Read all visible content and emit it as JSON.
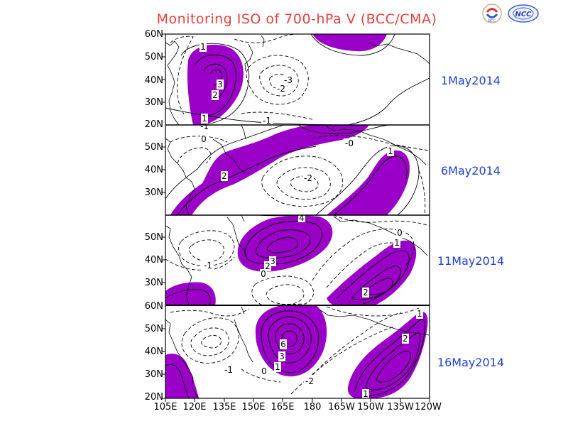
{
  "title": "Monitoring ISO of 700-hPa V (BCC/CMA)",
  "logos": {
    "left": "BCC",
    "right": "NCC"
  },
  "colors": {
    "title": "#e8403a",
    "dates": "#1e3fd6",
    "positive_fill": "#9b00c8",
    "contour": "#000000"
  },
  "panels": [
    {
      "date": "1May2014",
      "lat_labels": [
        "60N",
        "50N",
        "40N",
        "30N",
        "20N"
      ],
      "contour_labels": [
        "1",
        "3",
        "2",
        "1",
        "-3",
        "-2",
        "-1"
      ]
    },
    {
      "date": "6May2014",
      "lat_labels": [
        "50N",
        "40N",
        "30N"
      ],
      "contour_labels": [
        "-1",
        "0",
        "2",
        "-2",
        "-0",
        "1"
      ]
    },
    {
      "date": "11May2014",
      "lat_labels": [
        "50N",
        "40N",
        "30N"
      ],
      "contour_labels": [
        "4",
        "3",
        "2",
        "0",
        "-1",
        "0",
        "1",
        "2"
      ]
    },
    {
      "date": "16May2014",
      "lat_labels": [
        "60N",
        "50N",
        "40N",
        "30N",
        "20N"
      ],
      "contour_labels": [
        "6",
        "3",
        "1",
        "0",
        "-1",
        "-2",
        "2",
        "1",
        "1"
      ]
    }
  ],
  "lon_labels": [
    "105E",
    "120E",
    "135E",
    "150E",
    "165E",
    "180",
    "165W",
    "150W",
    "135W",
    "120W"
  ]
}
